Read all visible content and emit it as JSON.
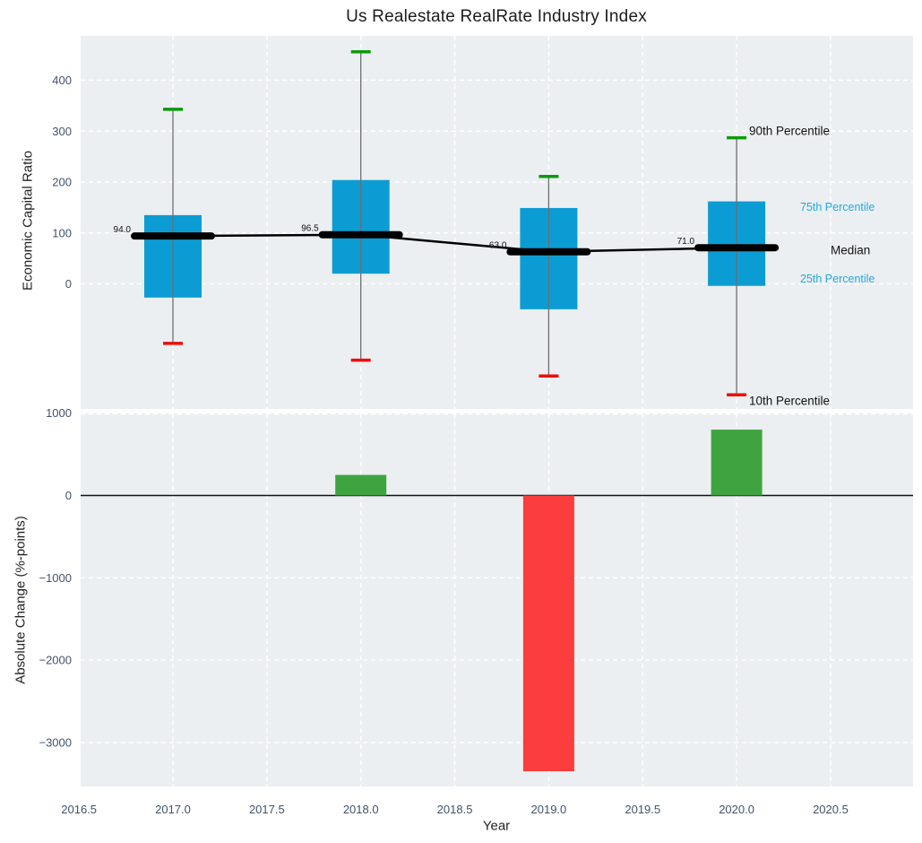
{
  "title": "Us Realestate RealRate Industry Index",
  "axis_labels": {
    "x": "Year",
    "y_top": "Economic Capital Ratio",
    "y_bottom": "Absolute Change (%-points)"
  },
  "annotations": {
    "p90": "90th Percentile",
    "p75": "75th Percentile",
    "median": "Median",
    "p25": "25th Percentile",
    "p10": "10th Percentile"
  },
  "colors": {
    "box_fill": "#0c9cd4",
    "median_line": "#000000",
    "whisker": "#6e6e6e",
    "cap_high_green": "#0a9b0a",
    "cap_low_red": "#ef0e0e",
    "bar_positive_green": "#3fa43f",
    "bar_negative_red": "#fb3d3d",
    "annotation_blue": "#2aa7dc",
    "tick_label": "#42526b",
    "plot_background": "#ebeff1",
    "zero_line": "#111111",
    "gridline": "#ffffff"
  },
  "chart_data": [
    {
      "type": "box",
      "title": "Us Realestate RealRate Industry Index",
      "ylabel": "Economic Capital Ratio",
      "x": [
        2017,
        2018,
        2019,
        2020
      ],
      "series": [
        {
          "name": "90th Percentile",
          "values": [
            343,
            456,
            211,
            287
          ]
        },
        {
          "name": "75th Percentile",
          "values": [
            135,
            204,
            149,
            162
          ]
        },
        {
          "name": "Median",
          "values": [
            94.0,
            96.5,
            63.0,
            71.0
          ]
        },
        {
          "name": "25th Percentile",
          "values": [
            -27,
            20,
            -50,
            -4
          ]
        },
        {
          "name": "10th Percentile",
          "values": [
            -117,
            -150,
            -181,
            -218
          ]
        }
      ],
      "median_labels": [
        "94.0",
        "96.5",
        "63.0",
        "71.0"
      ],
      "yticks": [
        400,
        300,
        200,
        100,
        0
      ],
      "ylim": [
        -245,
        487
      ],
      "grid": true,
      "legend_position": "right-annotations"
    },
    {
      "type": "bar",
      "ylabel": "Absolute Change (%-points)",
      "xlabel": "Year",
      "x": [
        2018,
        2019,
        2020
      ],
      "values": [
        250,
        -3350,
        800
      ],
      "bar_colors": [
        "green",
        "red",
        "green"
      ],
      "yticks": [
        1000,
        0,
        -1000,
        -2000,
        -3000
      ],
      "xticks": [
        2016.5,
        2017.0,
        2017.5,
        2018.0,
        2018.5,
        2019.0,
        2019.5,
        2020.0,
        2020.5
      ],
      "ylim": [
        -3620,
        1010
      ],
      "xlim": [
        2016.49,
        2020.92
      ],
      "grid": true
    }
  ]
}
